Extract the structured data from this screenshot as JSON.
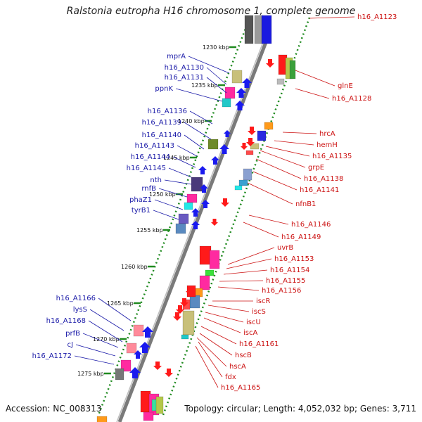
{
  "title": "Ralstonia eutropha H16 chromosome 1, complete genome",
  "accession": "Accession: NC_008313",
  "topology": "Topology: circular; Length: 4,052,032 bp; Genes: 3,711",
  "ticks": [
    "1230 kbp",
    "1235 kbp",
    "1240 kbp",
    "1245 kbp",
    "1250 kbp",
    "1255 kbp",
    "1260 kbp",
    "1265 kbp",
    "1270 kbp",
    "1275 kbp"
  ],
  "left_labels": [
    "mprA",
    "h16_A1130",
    "h16_A1131",
    "ppnK",
    "h16_A1136",
    "h16_A1139",
    "h16_A1140",
    "h16_A1143",
    "h16_A1144",
    "h16_A1145",
    "nth",
    "rnfB",
    "phaZ1",
    "tyrB1",
    "h16_A1166",
    "lysS",
    "h16_A1168",
    "prfB",
    "cJ",
    "h16_A1172"
  ],
  "right_labels": [
    "h16_A1123",
    "glnE",
    "h16_A1128",
    "hrcA",
    "hemH",
    "h16_A1135",
    "grpE",
    "h16_A1138",
    "h16_A1141",
    "nfnB1",
    "h16_A1146",
    "h16_A1149",
    "uvrB",
    "h16_A1153",
    "h16_A1154",
    "h16_A1155",
    "h16_A1156",
    "iscR",
    "iscS",
    "iscU",
    "iscA",
    "h16_A1161",
    "hscB",
    "hscA",
    "fdx",
    "h16_A1165"
  ],
  "colors": {
    "left_label": "#1a1aa8",
    "right_label": "#cc1111",
    "tick_dot": "#1f8a1f",
    "backbone": "#777777"
  }
}
